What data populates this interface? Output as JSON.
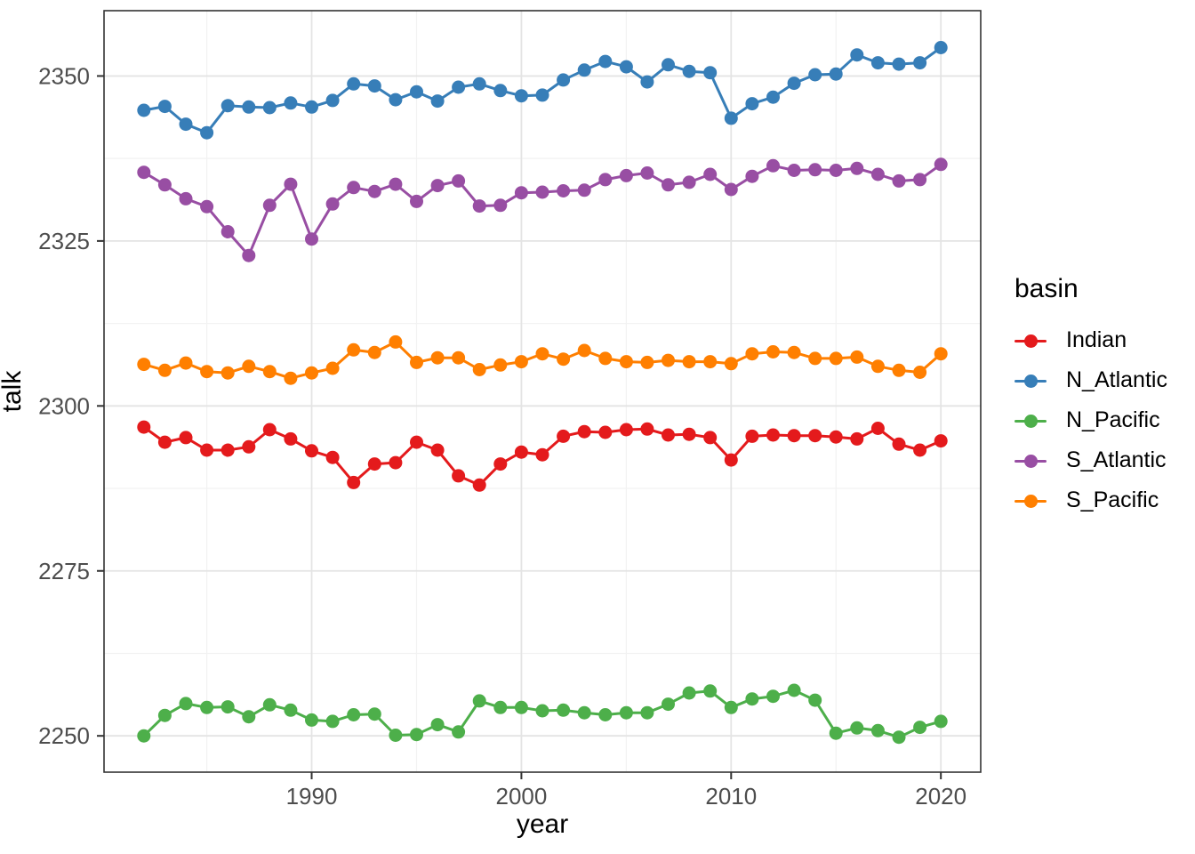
{
  "chart_data": {
    "type": "line",
    "title": "",
    "xlabel": "year",
    "ylabel": "talk",
    "legend": {
      "title": "basin",
      "position": "right"
    },
    "x": [
      1982,
      1983,
      1984,
      1985,
      1986,
      1987,
      1988,
      1989,
      1990,
      1991,
      1992,
      1993,
      1994,
      1995,
      1996,
      1997,
      1998,
      1999,
      2000,
      2001,
      2002,
      2003,
      2004,
      2005,
      2006,
      2007,
      2008,
      2009,
      2010,
      2011,
      2012,
      2013,
      2014,
      2015,
      2016,
      2017,
      2018,
      2019,
      2020
    ],
    "series": [
      {
        "name": "Indian",
        "color": "#E41A1C",
        "values": [
          2296.8,
          2294.5,
          2295.2,
          2293.3,
          2293.3,
          2293.8,
          2296.4,
          2295.0,
          2293.2,
          2292.2,
          2288.4,
          2291.2,
          2291.4,
          2294.5,
          2293.3,
          2289.4,
          2288.0,
          2291.2,
          2293.0,
          2292.6,
          2295.4,
          2296.1,
          2296.0,
          2296.4,
          2296.5,
          2295.6,
          2295.7,
          2295.2,
          2291.8,
          2295.4,
          2295.6,
          2295.5,
          2295.5,
          2295.3,
          2295.0,
          2296.6,
          2294.2,
          2293.3,
          2294.7
        ]
      },
      {
        "name": "N_Atlantic",
        "color": "#377EB8",
        "values": [
          2344.8,
          2345.4,
          2342.7,
          2341.4,
          2345.5,
          2345.3,
          2345.2,
          2345.9,
          2345.3,
          2346.3,
          2348.8,
          2348.5,
          2346.4,
          2347.6,
          2346.2,
          2348.3,
          2348.8,
          2347.8,
          2347.0,
          2347.1,
          2349.4,
          2350.9,
          2352.2,
          2351.4,
          2349.1,
          2351.7,
          2350.7,
          2350.5,
          2343.6,
          2345.8,
          2346.8,
          2348.9,
          2350.2,
          2350.3,
          2353.2,
          2352.0,
          2351.8,
          2352.0,
          2354.3
        ]
      },
      {
        "name": "N_Pacific",
        "color": "#4DAF4A",
        "values": [
          2250.0,
          2253.1,
          2254.9,
          2254.3,
          2254.4,
          2252.9,
          2254.7,
          2253.9,
          2252.4,
          2252.2,
          2253.2,
          2253.3,
          2250.1,
          2250.2,
          2251.7,
          2250.6,
          2255.3,
          2254.3,
          2254.3,
          2253.8,
          2253.9,
          2253.5,
          2253.2,
          2253.5,
          2253.5,
          2254.8,
          2256.5,
          2256.8,
          2254.3,
          2255.6,
          2256.0,
          2256.9,
          2255.4,
          2250.4,
          2251.2,
          2250.8,
          2249.8,
          2251.3,
          2252.2
        ]
      },
      {
        "name": "S_Atlantic",
        "color": "#984EA3",
        "values": [
          2335.4,
          2333.5,
          2331.4,
          2330.2,
          2326.4,
          2322.8,
          2330.4,
          2333.6,
          2325.3,
          2330.6,
          2333.1,
          2332.5,
          2333.6,
          2331.0,
          2333.4,
          2334.1,
          2330.3,
          2330.4,
          2332.3,
          2332.4,
          2332.6,
          2332.7,
          2334.3,
          2334.9,
          2335.3,
          2333.5,
          2333.9,
          2335.1,
          2332.8,
          2334.8,
          2336.4,
          2335.7,
          2335.8,
          2335.7,
          2336.0,
          2335.1,
          2334.1,
          2334.3,
          2336.6
        ]
      },
      {
        "name": "S_Pacific",
        "color": "#FF7F00",
        "values": [
          2306.3,
          2305.4,
          2306.5,
          2305.2,
          2305.0,
          2306.0,
          2305.2,
          2304.2,
          2305.0,
          2305.7,
          2308.5,
          2308.1,
          2309.7,
          2306.6,
          2307.3,
          2307.3,
          2305.5,
          2306.2,
          2306.7,
          2307.9,
          2307.1,
          2308.4,
          2307.2,
          2306.7,
          2306.6,
          2306.9,
          2306.7,
          2306.7,
          2306.4,
          2307.9,
          2308.2,
          2308.1,
          2307.2,
          2307.2,
          2307.4,
          2306.0,
          2305.4,
          2305.1,
          2307.9
        ]
      }
    ],
    "x_ticks": [
      1990,
      2000,
      2010,
      2020
    ],
    "y_ticks": [
      2250,
      2275,
      2300,
      2325,
      2350
    ],
    "x_minor_ticks": [
      1985,
      1995,
      2005,
      2015
    ],
    "y_minor_ticks": [
      2262.5,
      2287.5,
      2312.5,
      2337.5
    ],
    "xlim": [
      1980.1,
      2021.9
    ],
    "ylim": [
      2244.5,
      2359.9
    ],
    "grid": true
  },
  "style": {
    "panel_border_color": "#333333",
    "grid_major_color": "#e4e4e4",
    "grid_minor_color": "#f2f2f2",
    "tick_color": "#333333",
    "tick_label_color": "#4d4d4d",
    "background": "#ffffff"
  }
}
